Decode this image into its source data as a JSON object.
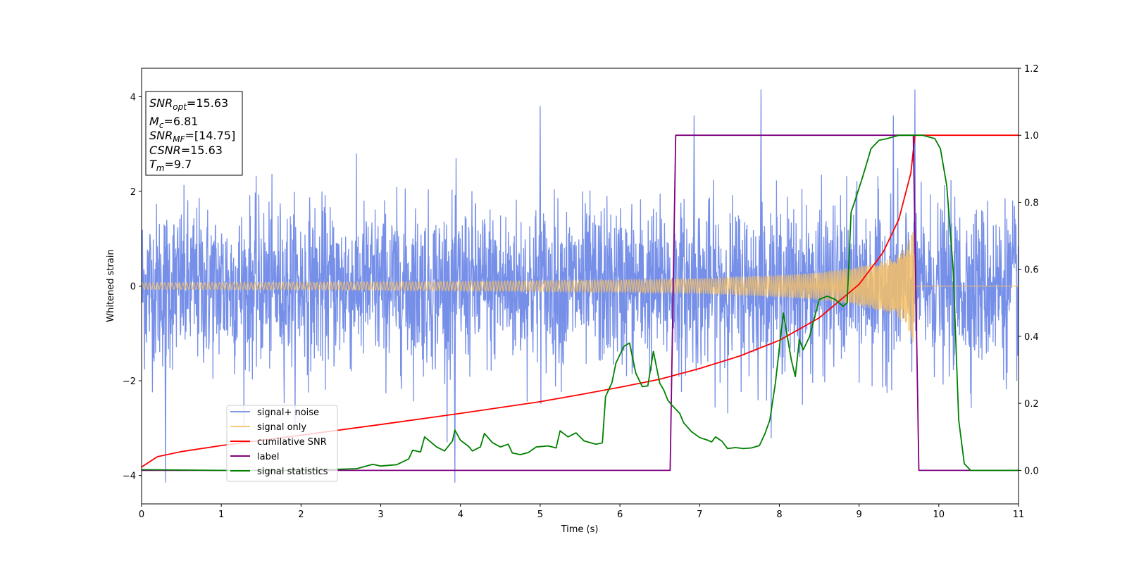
{
  "chart_data": {
    "type": "line",
    "xlabel": "Time (s)",
    "ylabel": "Whitened strain",
    "xlim": [
      0,
      11
    ],
    "ylim": [
      -4.6,
      4.6
    ],
    "y2lim": [
      -0.1,
      1.2
    ],
    "x_ticks": [
      0,
      1,
      2,
      3,
      4,
      5,
      6,
      7,
      8,
      9,
      10,
      11
    ],
    "y_ticks": [
      -4,
      -2,
      0,
      2,
      4
    ],
    "y_tick_labels": [
      "−4",
      "−2",
      "0",
      "2",
      "4"
    ],
    "y2_ticks": [
      0.0,
      0.2,
      0.4,
      0.6,
      0.8,
      1.0,
      1.2
    ],
    "y2_tick_labels": [
      "0.0",
      "0.2",
      "0.4",
      "0.6",
      "0.8",
      "1.0",
      "1.2"
    ],
    "grid": false,
    "legend_position": "lower-left",
    "info_box": [
      {
        "sym": "SNR",
        "sub": "opt",
        "val": "=15.63"
      },
      {
        "sym": "M",
        "sub": "c",
        "val": "=6.81"
      },
      {
        "sym": "SNR",
        "sub": "MF",
        "val": "=[14.75]"
      },
      {
        "sym": "CSNR",
        "sub": "",
        "val": "=15.63"
      },
      {
        "sym": "T",
        "sub": "m",
        "val": "=9.7"
      }
    ],
    "series": [
      {
        "name": "signal+ noise",
        "color": "#6a86e6",
        "axis": "left",
        "kind": "noise",
        "typical_range": [
          -1.8,
          1.8
        ],
        "peaks": [
          [
            0.3,
            -4.15
          ],
          [
            3.93,
            -4.15
          ],
          [
            5.0,
            3.8
          ],
          [
            7.77,
            4.15
          ],
          [
            9.7,
            4.15
          ],
          [
            6.93,
            3.6
          ],
          [
            9.43,
            3.6
          ]
        ]
      },
      {
        "name": "signal only",
        "color": "#f5bf66",
        "axis": "left",
        "kind": "chirp",
        "envelope": [
          [
            0,
            0.07
          ],
          [
            2,
            0.08
          ],
          [
            4,
            0.1
          ],
          [
            6,
            0.13
          ],
          [
            7,
            0.16
          ],
          [
            8,
            0.23
          ],
          [
            8.5,
            0.29
          ],
          [
            9,
            0.42
          ],
          [
            9.3,
            0.53
          ],
          [
            9.5,
            0.68
          ],
          [
            9.6,
            0.85
          ],
          [
            9.68,
            1.2
          ],
          [
            9.72,
            0.0
          ],
          [
            11,
            0.0
          ]
        ]
      },
      {
        "name": "cumilative SNR",
        "color": "#ff0000",
        "axis": "right",
        "points": [
          [
            0.0,
            0.01
          ],
          [
            0.2,
            0.041
          ],
          [
            0.5,
            0.056
          ],
          [
            1.0,
            0.074
          ],
          [
            2.0,
            0.105
          ],
          [
            3.0,
            0.137
          ],
          [
            4.0,
            0.17
          ],
          [
            5.0,
            0.205
          ],
          [
            5.5,
            0.226
          ],
          [
            6.0,
            0.248
          ],
          [
            6.5,
            0.272
          ],
          [
            7.0,
            0.304
          ],
          [
            7.5,
            0.341
          ],
          [
            8.0,
            0.388
          ],
          [
            8.5,
            0.455
          ],
          [
            9.0,
            0.555
          ],
          [
            9.3,
            0.65
          ],
          [
            9.5,
            0.75
          ],
          [
            9.65,
            0.888
          ],
          [
            9.7,
            1.0
          ],
          [
            11.0,
            1.0
          ]
        ]
      },
      {
        "name": "label",
        "color": "#800080",
        "axis": "right",
        "points": [
          [
            0.0,
            0.0
          ],
          [
            6.63,
            0.0
          ],
          [
            6.7,
            1.0
          ],
          [
            9.68,
            1.0
          ],
          [
            9.75,
            0.0
          ],
          [
            11.0,
            0.0
          ]
        ]
      },
      {
        "name": "signal statistics",
        "color": "#008000",
        "axis": "right",
        "points": [
          [
            0.0,
            0.002
          ],
          [
            1.0,
            0.0
          ],
          [
            2.0,
            0.0
          ],
          [
            2.7,
            0.005
          ],
          [
            2.9,
            0.018
          ],
          [
            3.0,
            0.013
          ],
          [
            3.2,
            0.017
          ],
          [
            3.35,
            0.034
          ],
          [
            3.4,
            0.06
          ],
          [
            3.5,
            0.055
          ],
          [
            3.55,
            0.1
          ],
          [
            3.7,
            0.07
          ],
          [
            3.8,
            0.058
          ],
          [
            3.9,
            0.088
          ],
          [
            3.93,
            0.12
          ],
          [
            4.0,
            0.09
          ],
          [
            4.1,
            0.072
          ],
          [
            4.15,
            0.058
          ],
          [
            4.25,
            0.07
          ],
          [
            4.3,
            0.11
          ],
          [
            4.4,
            0.083
          ],
          [
            4.5,
            0.07
          ],
          [
            4.6,
            0.078
          ],
          [
            4.65,
            0.052
          ],
          [
            4.75,
            0.047
          ],
          [
            4.85,
            0.053
          ],
          [
            4.95,
            0.07
          ],
          [
            5.1,
            0.073
          ],
          [
            5.2,
            0.067
          ],
          [
            5.25,
            0.118
          ],
          [
            5.35,
            0.1
          ],
          [
            5.45,
            0.112
          ],
          [
            5.55,
            0.088
          ],
          [
            5.7,
            0.078
          ],
          [
            5.78,
            0.082
          ],
          [
            5.82,
            0.22
          ],
          [
            5.9,
            0.262
          ],
          [
            5.95,
            0.32
          ],
          [
            6.05,
            0.37
          ],
          [
            6.12,
            0.38
          ],
          [
            6.2,
            0.29
          ],
          [
            6.28,
            0.25
          ],
          [
            6.35,
            0.252
          ],
          [
            6.42,
            0.355
          ],
          [
            6.5,
            0.26
          ],
          [
            6.55,
            0.24
          ],
          [
            6.6,
            0.21
          ],
          [
            6.65,
            0.195
          ],
          [
            6.75,
            0.17
          ],
          [
            6.8,
            0.142
          ],
          [
            6.9,
            0.115
          ],
          [
            7.0,
            0.098
          ],
          [
            7.1,
            0.09
          ],
          [
            7.15,
            0.085
          ],
          [
            7.2,
            0.1
          ],
          [
            7.28,
            0.087
          ],
          [
            7.35,
            0.065
          ],
          [
            7.45,
            0.068
          ],
          [
            7.55,
            0.065
          ],
          [
            7.65,
            0.067
          ],
          [
            7.75,
            0.074
          ],
          [
            7.82,
            0.11
          ],
          [
            7.88,
            0.15
          ],
          [
            7.95,
            0.26
          ],
          [
            8.05,
            0.47
          ],
          [
            8.15,
            0.33
          ],
          [
            8.2,
            0.28
          ],
          [
            8.25,
            0.39
          ],
          [
            8.3,
            0.36
          ],
          [
            8.38,
            0.4
          ],
          [
            8.5,
            0.51
          ],
          [
            8.6,
            0.52
          ],
          [
            8.7,
            0.51
          ],
          [
            8.8,
            0.49
          ],
          [
            8.85,
            0.5
          ],
          [
            8.9,
            0.77
          ],
          [
            8.97,
            0.82
          ],
          [
            9.05,
            0.88
          ],
          [
            9.15,
            0.96
          ],
          [
            9.25,
            0.985
          ],
          [
            9.35,
            0.99
          ],
          [
            9.5,
            1.0
          ],
          [
            9.6,
            1.0
          ],
          [
            9.8,
            1.0
          ],
          [
            9.95,
            0.99
          ],
          [
            10.02,
            0.96
          ],
          [
            10.1,
            0.85
          ],
          [
            10.18,
            0.6
          ],
          [
            10.25,
            0.15
          ],
          [
            10.32,
            0.02
          ],
          [
            10.4,
            0.0
          ],
          [
            11.0,
            0.0
          ]
        ]
      }
    ]
  }
}
